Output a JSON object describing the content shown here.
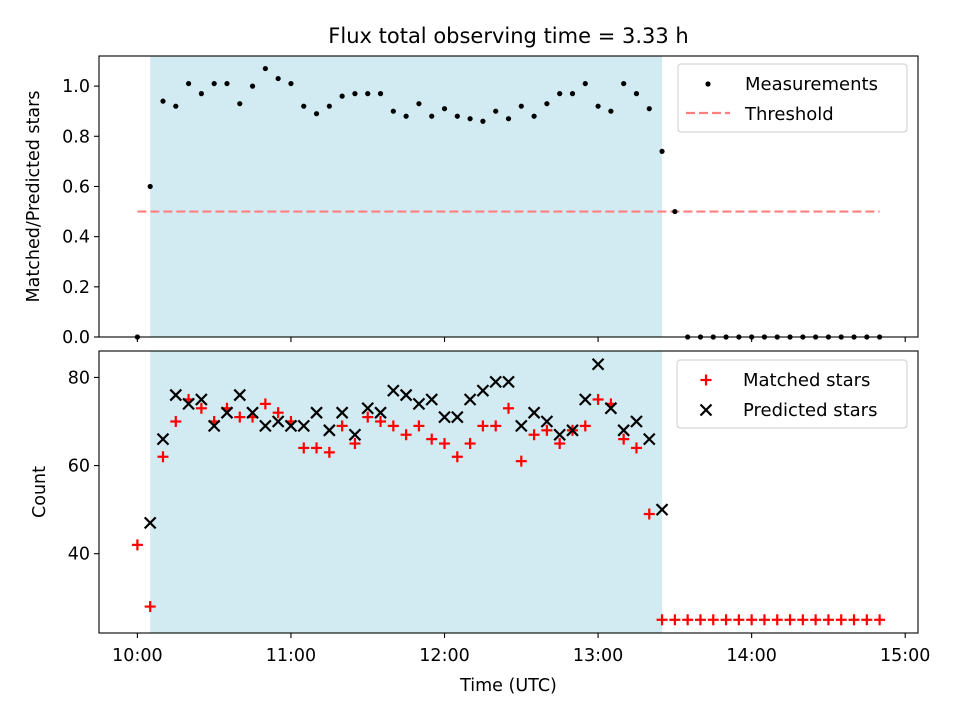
{
  "chart_data": [
    {
      "type": "scatter",
      "title": "Flux total observing time = 3.33 h",
      "xlabel": "",
      "ylabel": "Matched/Predicted stars",
      "ylim": [
        0,
        1.12
      ],
      "y_ticks": [
        0.0,
        0.2,
        0.4,
        0.6,
        0.8,
        1.0
      ],
      "y_tick_labels": [
        "0.0",
        "0.2",
        "0.4",
        "0.6",
        "0.8",
        "1.0"
      ],
      "grid": false,
      "legend_position": "top-right",
      "shaded_interval": {
        "from": "10:05",
        "to": "13:25",
        "color": "#add8e6"
      },
      "threshold": {
        "name": "Threshold",
        "value": 0.5,
        "from": "10:00",
        "to": "14:50",
        "color": "#ff7f7f",
        "style": "dashed"
      },
      "series": [
        {
          "name": "Measurements",
          "marker": "dot",
          "color": "#000000",
          "x": [
            "10:00",
            "10:05",
            "10:10",
            "10:15",
            "10:20",
            "10:25",
            "10:30",
            "10:35",
            "10:40",
            "10:45",
            "10:50",
            "10:55",
            "11:00",
            "11:05",
            "11:10",
            "11:15",
            "11:20",
            "11:25",
            "11:30",
            "11:35",
            "11:40",
            "11:45",
            "11:50",
            "11:55",
            "12:00",
            "12:05",
            "12:10",
            "12:15",
            "12:20",
            "12:25",
            "12:30",
            "12:35",
            "12:40",
            "12:45",
            "12:50",
            "12:55",
            "13:00",
            "13:05",
            "13:10",
            "13:15",
            "13:20",
            "13:25",
            "13:30",
            "13:35",
            "13:40",
            "13:45",
            "13:50",
            "13:55",
            "14:00",
            "14:05",
            "14:10",
            "14:15",
            "14:20",
            "14:25",
            "14:30",
            "14:35",
            "14:40",
            "14:45",
            "14:50"
          ],
          "y": [
            0.0,
            0.6,
            0.94,
            0.92,
            1.01,
            0.97,
            1.01,
            1.01,
            0.93,
            1.0,
            1.07,
            1.03,
            1.01,
            0.92,
            0.89,
            0.92,
            0.96,
            0.97,
            0.97,
            0.97,
            0.9,
            0.88,
            0.93,
            0.88,
            0.91,
            0.88,
            0.87,
            0.86,
            0.9,
            0.87,
            0.92,
            0.88,
            0.93,
            0.97,
            0.97,
            1.01,
            0.92,
            0.9,
            1.01,
            0.97,
            0.91,
            0.74,
            0.5,
            0.0,
            0.0,
            0.0,
            0.0,
            0.0,
            0.0,
            0.0,
            0.0,
            0.0,
            0.0,
            0.0,
            0.0,
            0.0,
            0.0,
            0.0,
            0.0
          ]
        }
      ]
    },
    {
      "type": "scatter",
      "title": "",
      "xlabel": "Time (UTC)",
      "ylabel": "Count",
      "ylim": [
        22,
        86
      ],
      "xlim": [
        "09:45",
        "15:05"
      ],
      "y_ticks": [
        40,
        60,
        80
      ],
      "y_tick_labels": [
        "40",
        "60",
        "80"
      ],
      "x_ticks": [
        "10:00",
        "11:00",
        "12:00",
        "13:00",
        "14:00",
        "15:00"
      ],
      "x_tick_labels": [
        "10:00",
        "11:00",
        "12:00",
        "13:00",
        "14:00",
        "15:00"
      ],
      "grid": false,
      "legend_position": "top-right",
      "shaded_interval": {
        "from": "10:05",
        "to": "13:25",
        "color": "#add8e6"
      },
      "series": [
        {
          "name": "Matched stars",
          "marker": "plus",
          "color": "#ff0000",
          "x": [
            "10:00",
            "10:05",
            "10:10",
            "10:15",
            "10:20",
            "10:25",
            "10:30",
            "10:35",
            "10:40",
            "10:45",
            "10:50",
            "10:55",
            "11:00",
            "11:05",
            "11:10",
            "11:15",
            "11:20",
            "11:25",
            "11:30",
            "11:35",
            "11:40",
            "11:45",
            "11:50",
            "11:55",
            "12:00",
            "12:05",
            "12:10",
            "12:15",
            "12:20",
            "12:25",
            "12:30",
            "12:35",
            "12:40",
            "12:45",
            "12:50",
            "12:55",
            "13:00",
            "13:05",
            "13:10",
            "13:15",
            "13:20",
            "13:25",
            "13:30",
            "13:35",
            "13:40",
            "13:45",
            "13:50",
            "13:55",
            "14:00",
            "14:05",
            "14:10",
            "14:15",
            "14:20",
            "14:25",
            "14:30",
            "14:35",
            "14:40",
            "14:45",
            "14:50"
          ],
          "y": [
            42,
            28,
            62,
            70,
            75,
            73,
            70,
            73,
            71,
            71,
            74,
            72,
            70,
            64,
            64,
            63,
            69,
            65,
            71,
            70,
            69,
            67,
            69,
            66,
            65,
            62,
            65,
            69,
            69,
            73,
            61,
            67,
            68,
            65,
            68,
            69,
            75,
            74,
            66,
            64,
            49,
            25,
            25,
            25,
            25,
            25,
            25,
            25,
            25,
            25,
            25,
            25,
            25,
            25,
            25,
            25,
            25,
            25,
            25
          ]
        },
        {
          "name": "Predicted stars",
          "marker": "x",
          "color": "#000000",
          "x": [
            "10:05",
            "10:10",
            "10:15",
            "10:20",
            "10:25",
            "10:30",
            "10:35",
            "10:40",
            "10:45",
            "10:50",
            "10:55",
            "11:00",
            "11:05",
            "11:10",
            "11:15",
            "11:20",
            "11:25",
            "11:30",
            "11:35",
            "11:40",
            "11:45",
            "11:50",
            "11:55",
            "12:00",
            "12:05",
            "12:10",
            "12:15",
            "12:20",
            "12:25",
            "12:30",
            "12:35",
            "12:40",
            "12:45",
            "12:50",
            "12:55",
            "13:00",
            "13:05",
            "13:10",
            "13:15",
            "13:20",
            "13:25"
          ],
          "y": [
            47,
            66,
            76,
            74,
            75,
            69,
            72,
            76,
            72,
            69,
            70,
            69,
            69,
            72,
            68,
            72,
            67,
            73,
            72,
            77,
            76,
            74,
            75,
            71,
            71,
            75,
            77,
            79,
            79,
            69,
            72,
            70,
            67,
            68,
            75,
            83,
            73,
            68,
            70,
            66,
            50
          ]
        }
      ]
    }
  ]
}
